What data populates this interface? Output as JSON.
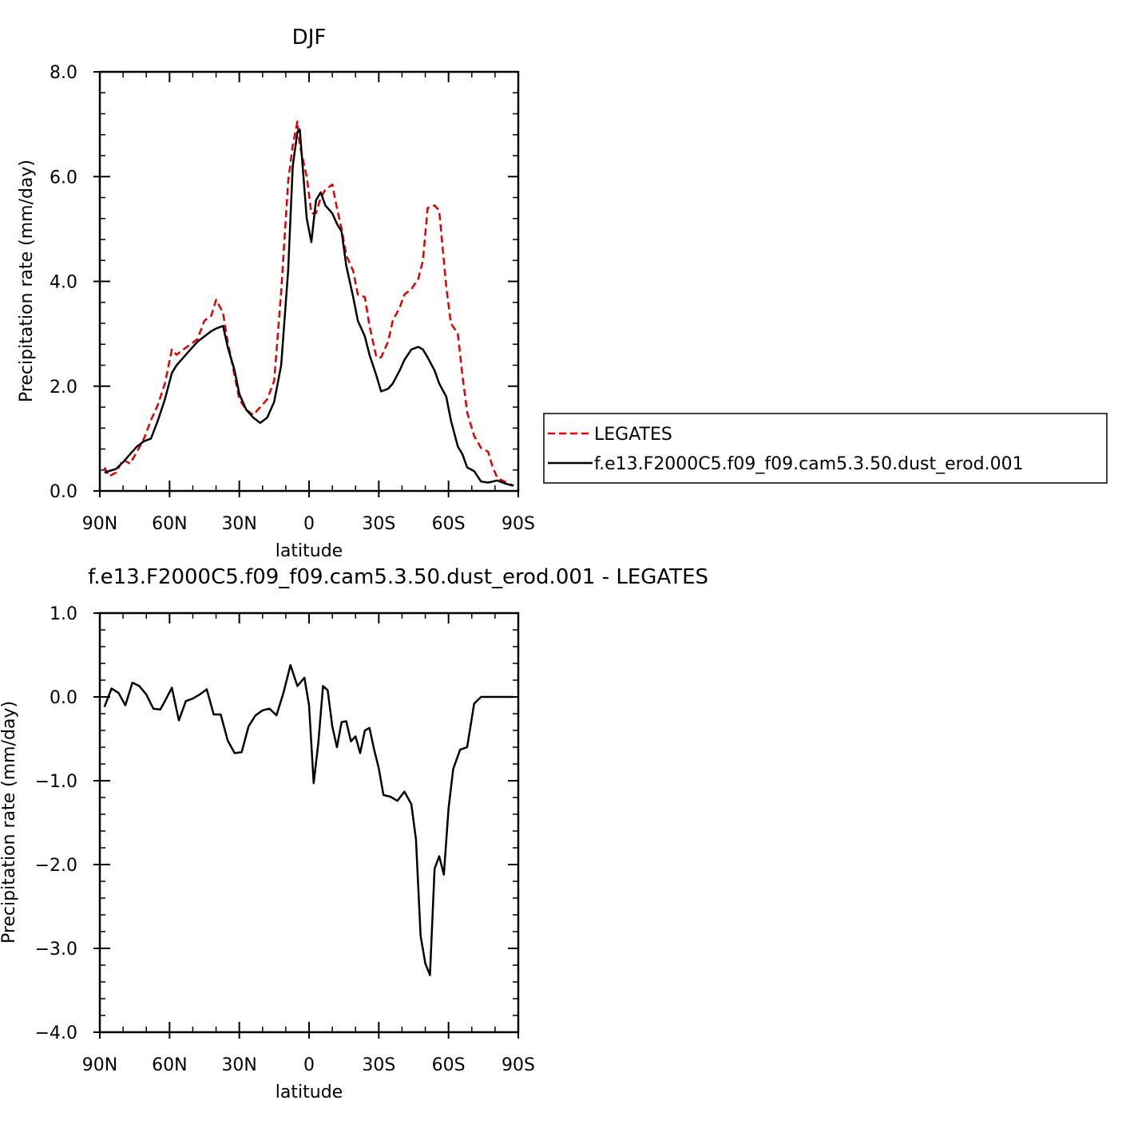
{
  "chart_data": [
    {
      "type": "line",
      "title": "DJF",
      "xlabel": "latitude",
      "ylabel": "Precipitation rate (mm/day)",
      "xlim": [
        90,
        -90
      ],
      "ylim": [
        0,
        8
      ],
      "x_ticks": [
        90,
        60,
        30,
        0,
        -30,
        -60,
        -90
      ],
      "x_tick_labels": [
        "90N",
        "60N",
        "30N",
        "0",
        "30S",
        "60S",
        "90S"
      ],
      "y_ticks": [
        0,
        2,
        4,
        6,
        8
      ],
      "y_tick_labels": [
        "0.0",
        "2.0",
        "4.0",
        "6.0",
        "8.0"
      ],
      "legend_position": "right",
      "grid": false,
      "colors": {
        "LEGATES": "#e00000",
        "model": "#000000"
      },
      "series": [
        {
          "name": "LEGATES",
          "style": "dashed",
          "x": [
            88,
            86,
            83,
            80,
            77,
            74,
            71,
            68,
            65,
            62,
            59,
            57,
            54,
            51,
            48,
            45,
            42,
            40,
            37,
            35,
            32,
            30,
            27,
            24,
            21,
            18,
            15,
            12,
            9,
            7,
            5,
            4,
            1,
            -1,
            -3,
            -5,
            -7,
            -10,
            -12,
            -14,
            -16,
            -19,
            -21,
            -24,
            -26,
            -29,
            -31,
            -34,
            -36,
            -39,
            -41,
            -44,
            -47,
            -49,
            -51,
            -54,
            -56,
            -59,
            -61,
            -64,
            -66,
            -68,
            -71,
            -74,
            -77,
            -79,
            -81,
            -84,
            -86,
            -88
          ],
          "y": [
            0.45,
            0.28,
            0.35,
            0.6,
            0.52,
            0.75,
            1.0,
            1.35,
            1.65,
            2.05,
            2.7,
            2.6,
            2.7,
            2.8,
            2.9,
            3.25,
            3.35,
            3.65,
            3.4,
            2.85,
            2.2,
            1.75,
            1.55,
            1.45,
            1.6,
            1.75,
            2.1,
            3.8,
            5.9,
            6.6,
            7.05,
            6.6,
            6.0,
            5.3,
            5.3,
            5.6,
            5.75,
            5.85,
            5.4,
            5.0,
            4.5,
            4.2,
            3.75,
            3.7,
            3.15,
            2.55,
            2.55,
            2.85,
            3.25,
            3.5,
            3.75,
            3.85,
            4.05,
            4.4,
            5.4,
            5.45,
            5.35,
            3.9,
            3.2,
            3.0,
            2.2,
            1.5,
            1.05,
            0.82,
            0.75,
            0.45,
            0.25,
            0.18,
            0.14,
            0.1
          ]
        },
        {
          "name": "f.e13.F2000C5.f09_f09.cam5.3.50.dust_erod.001",
          "style": "solid",
          "x": [
            88,
            86,
            83,
            80,
            77,
            74,
            71,
            68,
            65,
            62,
            59,
            57,
            54,
            51,
            48,
            45,
            42,
            40,
            37,
            35,
            32,
            30,
            27,
            24,
            21,
            18,
            15,
            12,
            9,
            7,
            5,
            4,
            1,
            -1,
            -3,
            -5,
            -7,
            -10,
            -12,
            -14,
            -16,
            -19,
            -21,
            -24,
            -26,
            -29,
            -31,
            -34,
            -36,
            -39,
            -41,
            -44,
            -47,
            -49,
            -51,
            -54,
            -56,
            -59,
            -61,
            -64,
            -66,
            -68,
            -71,
            -74,
            -77,
            -79,
            -81,
            -84,
            -86,
            -88
          ],
          "y": [
            0.35,
            0.38,
            0.42,
            0.55,
            0.7,
            0.85,
            0.95,
            1.0,
            1.35,
            1.75,
            2.25,
            2.4,
            2.55,
            2.7,
            2.85,
            2.95,
            3.05,
            3.1,
            3.15,
            2.75,
            2.3,
            1.85,
            1.55,
            1.4,
            1.3,
            1.4,
            1.7,
            2.4,
            4.2,
            6.2,
            6.85,
            6.9,
            5.2,
            4.75,
            5.55,
            5.7,
            5.45,
            5.3,
            5.1,
            4.95,
            4.3,
            3.7,
            3.25,
            2.95,
            2.6,
            2.2,
            1.9,
            1.95,
            2.05,
            2.3,
            2.5,
            2.7,
            2.75,
            2.7,
            2.55,
            2.3,
            2.05,
            1.8,
            1.35,
            0.85,
            0.7,
            0.45,
            0.38,
            0.18,
            0.16,
            0.18,
            0.2,
            0.15,
            0.12,
            0.1
          ]
        }
      ]
    },
    {
      "type": "line",
      "title": "f.e13.F2000C5.f09_f09.cam5.3.50.dust_erod.001 - LEGATES",
      "xlabel": "latitude",
      "ylabel": "Precipitation rate (mm/day)",
      "xlim": [
        90,
        -90
      ],
      "ylim": [
        -4,
        1
      ],
      "x_ticks": [
        90,
        60,
        30,
        0,
        -30,
        -60,
        -90
      ],
      "x_tick_labels": [
        "90N",
        "60N",
        "30N",
        "0",
        "30S",
        "60S",
        "90S"
      ],
      "y_ticks": [
        -4,
        -3,
        -2,
        -1,
        0,
        1
      ],
      "y_tick_labels": [
        "−4.0",
        "−3.0",
        "−2.0",
        "−1.0",
        "0.0",
        "1.0"
      ],
      "grid": false,
      "colors": {
        "line": "#000000"
      },
      "series": [
        {
          "style": "solid",
          "x": [
            88,
            85,
            82,
            79,
            76,
            73,
            70,
            67,
            64,
            62,
            59,
            56,
            53,
            50,
            47,
            44,
            41,
            38,
            35,
            32,
            29,
            26,
            23,
            20,
            17,
            14,
            11,
            8,
            5,
            2,
            0,
            -2,
            -4,
            -6,
            -8,
            -10,
            -12,
            -14,
            -16,
            -18,
            -20,
            -22,
            -24,
            -26,
            -28,
            -30,
            -32,
            -35,
            -38,
            -41,
            -44,
            -46,
            -48,
            -50,
            -52,
            -54,
            -56,
            -58,
            -60,
            -62,
            -65,
            -68,
            -71,
            -74,
            -77,
            -80,
            -82,
            -85,
            -88
          ],
          "y": [
            -0.12,
            0.1,
            0.05,
            -0.1,
            0.17,
            0.13,
            0.03,
            -0.14,
            -0.15,
            -0.05,
            0.11,
            -0.28,
            -0.05,
            -0.02,
            0.03,
            0.09,
            -0.21,
            -0.21,
            -0.52,
            -0.67,
            -0.66,
            -0.35,
            -0.22,
            -0.16,
            -0.14,
            -0.22,
            0.05,
            0.38,
            0.13,
            0.23,
            -0.1,
            -1.03,
            -0.55,
            0.13,
            0.08,
            -0.35,
            -0.6,
            -0.3,
            -0.29,
            -0.53,
            -0.47,
            -0.67,
            -0.4,
            -0.37,
            -0.63,
            -0.85,
            -1.17,
            -1.19,
            -1.24,
            -1.13,
            -1.28,
            -1.7,
            -2.85,
            -3.18,
            -3.32,
            -2.05,
            -1.9,
            -2.12,
            -1.33,
            -0.86,
            -0.63,
            -0.6,
            -0.08,
            0.0,
            0.0,
            0.0,
            0.0,
            0.0,
            0.0
          ]
        }
      ]
    }
  ]
}
